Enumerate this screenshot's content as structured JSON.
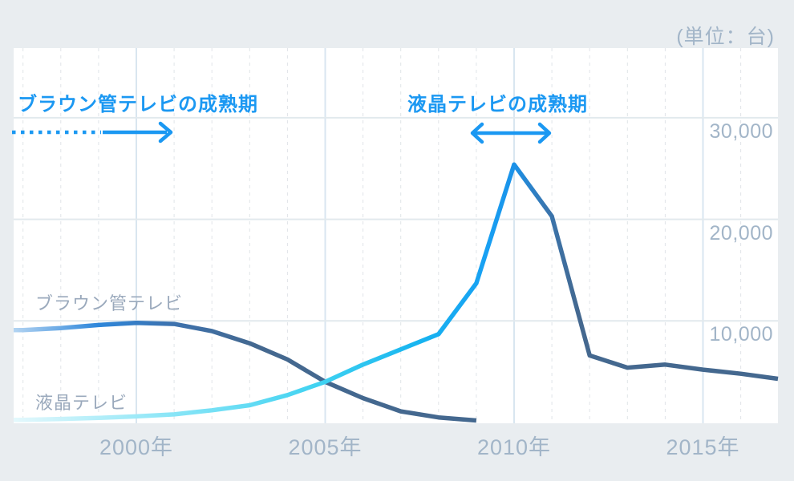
{
  "page": {
    "unit_label": "(単位：台)"
  },
  "annotations": {
    "crt_period": "ブラウン管テレビの成熟期",
    "lcd_period": "液晶テレビの成熟期"
  },
  "series_labels": {
    "crt": "ブラウン管テレビ",
    "lcd": "液晶テレビ"
  },
  "colors": {
    "accent_blue": "#1b98f2",
    "axis_text": "#a2b5c8",
    "series_label_text": "#9aa9bc",
    "page_bg": "#e9edf0",
    "plot_bg": "#ffffff",
    "grid_minor": "#e0e4e8",
    "grid_major_vertical": "#d9e6f0",
    "grid_horizontal": "#e2e9ed",
    "line_slate": "#44688f",
    "line_bright_blue": "#18a0f3",
    "line_cyan": "#3fd2f1",
    "line_crt_blue": "#2e87db",
    "line_light_blue_start": "#b3d4f2",
    "line_light_cyan_start": "#e4f8fc"
  },
  "chart_data": {
    "type": "line",
    "title": "",
    "unit": "台",
    "x": [
      1997,
      1998,
      1999,
      2000,
      2001,
      2002,
      2003,
      2004,
      2005,
      2006,
      2007,
      2008,
      2009,
      2010,
      2011,
      2012,
      2013,
      2014,
      2015,
      2016,
      2017
    ],
    "series": [
      {
        "name": "ブラウン管テレビ",
        "values": [
          9100,
          9300,
          9600,
          9800,
          9700,
          9000,
          7800,
          6200,
          4000,
          2400,
          1100,
          500,
          200,
          null,
          null,
          null,
          null,
          null,
          null,
          null,
          null
        ]
      },
      {
        "name": "液晶テレビ",
        "values": [
          250,
          350,
          450,
          600,
          800,
          1200,
          1700,
          2700,
          4000,
          5700,
          7200,
          8700,
          13700,
          25400,
          20300,
          6600,
          5400,
          5700,
          5200,
          4800,
          4300
        ]
      }
    ],
    "x_tick_labels": [
      "2000年",
      "2005年",
      "2010年",
      "2015年"
    ],
    "x_tick_years": [
      2000,
      2005,
      2010,
      2015
    ],
    "y_tick_labels": [
      "30,000",
      "20,000",
      "10,000"
    ],
    "y_tick_values": [
      30000,
      20000,
      10000
    ],
    "xlim": [
      1996.75,
      2017
    ],
    "ylim": [
      0,
      36900
    ],
    "grid": "both",
    "legend_position": "inline-labels",
    "annotations": [
      "ブラウン管テレビの成熟期 (dotted arrow →)",
      "液晶テレビの成熟期 (↔)"
    ]
  }
}
